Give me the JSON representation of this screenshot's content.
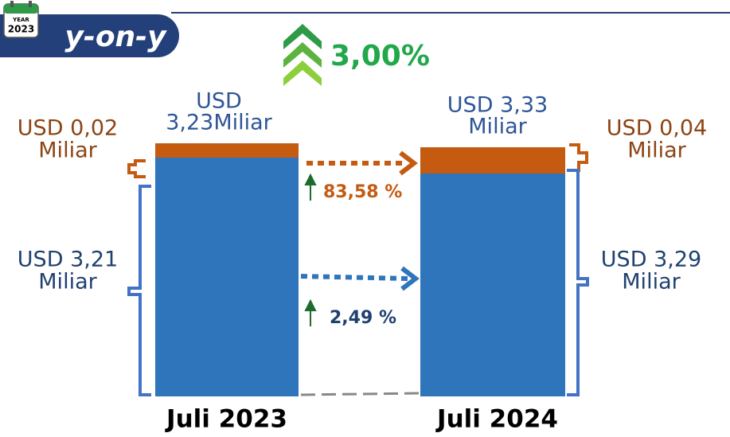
{
  "badge": {
    "icon_top": "YEAR",
    "icon_year": "2023",
    "label": "y-on-y"
  },
  "growth_total": "3,00%",
  "bars": [
    {
      "period": "Juli 2023",
      "total": [
        "USD",
        "3,23Miliar"
      ],
      "top_part": [
        "USD 0,02",
        "Miliar"
      ],
      "bottom_part": [
        "USD 3,21",
        "Miliar"
      ]
    },
    {
      "period": "Juli 2024",
      "total": [
        "USD 3,33",
        "Miliar"
      ],
      "top_part": [
        "USD 0,04",
        "Miliar"
      ],
      "bottom_part": [
        "USD 3,29",
        "Miliar"
      ]
    }
  ],
  "growth_top_part": "83,58 %",
  "growth_bottom_part": "2,49 %"
}
